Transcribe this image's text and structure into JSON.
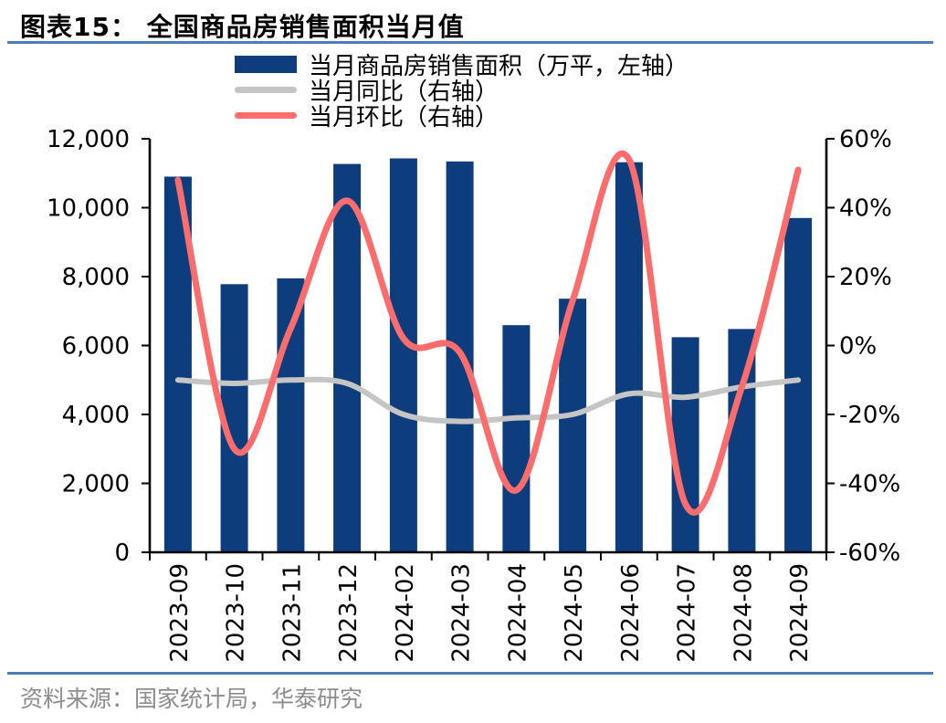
{
  "header": {
    "title": "图表15： 全国商品房销售面积当月值"
  },
  "legend": [
    {
      "type": "bar",
      "color": "#0D3D7C",
      "label": "当月商品房销售面积（万平，左轴）"
    },
    {
      "type": "line",
      "color": "#C5C5C5",
      "label": "当月同比（右轴）"
    },
    {
      "type": "line",
      "color": "#FB6D6D",
      "label": "当月环比（右轴）"
    }
  ],
  "chart_data": {
    "type": "combo",
    "title": "全国商品房销售面积当月值",
    "figure_label": "图表15",
    "categories": [
      "2023-09",
      "2023-10",
      "2023-11",
      "2023-12",
      "2024-02",
      "2024-03",
      "2024-04",
      "2024-05",
      "2024-06",
      "2024-07",
      "2024-08",
      "2024-09"
    ],
    "series": [
      {
        "name": "当月商品房销售面积（万平，左轴）",
        "type": "bar",
        "axis": "left",
        "color": "#0D3D7C",
        "values": [
          10900,
          7780,
          7950,
          11270,
          11430,
          11340,
          6590,
          7360,
          11320,
          6240,
          6480,
          9700
        ]
      },
      {
        "name": "当月同比（右轴）",
        "type": "line",
        "axis": "right",
        "color": "#C5C5C5",
        "values": [
          -10,
          -11,
          -10,
          -11,
          -20,
          -22,
          -21,
          -20,
          -14,
          -15,
          -12,
          -10
        ]
      },
      {
        "name": "当月环比（右轴）",
        "type": "line",
        "axis": "right",
        "color": "#FB6D6D",
        "values": [
          48,
          -30,
          5,
          42,
          2,
          -2,
          -42,
          13,
          54,
          -46,
          -12,
          51
        ]
      }
    ],
    "left_axis": {
      "min": 0,
      "max": 12000,
      "step": 2000,
      "tick_labels": [
        "0",
        "2,000",
        "4,000",
        "6,000",
        "8,000",
        "10,000",
        "12,000"
      ]
    },
    "right_axis": {
      "min": -60,
      "max": 60,
      "step": 20,
      "tick_labels": [
        "-60%",
        "-40%",
        "-20%",
        "0%",
        "20%",
        "40%",
        "60%"
      ]
    },
    "grid": false,
    "legend_position": "top"
  },
  "footer": {
    "source": "资料来源：国家统计局，华泰研究"
  },
  "colors": {
    "accent_rule": "#4F7CB5",
    "axis": "#000000",
    "bar": "#0D3D7C",
    "yoy_line": "#C5C5C5",
    "mom_line": "#FB6D6D"
  }
}
